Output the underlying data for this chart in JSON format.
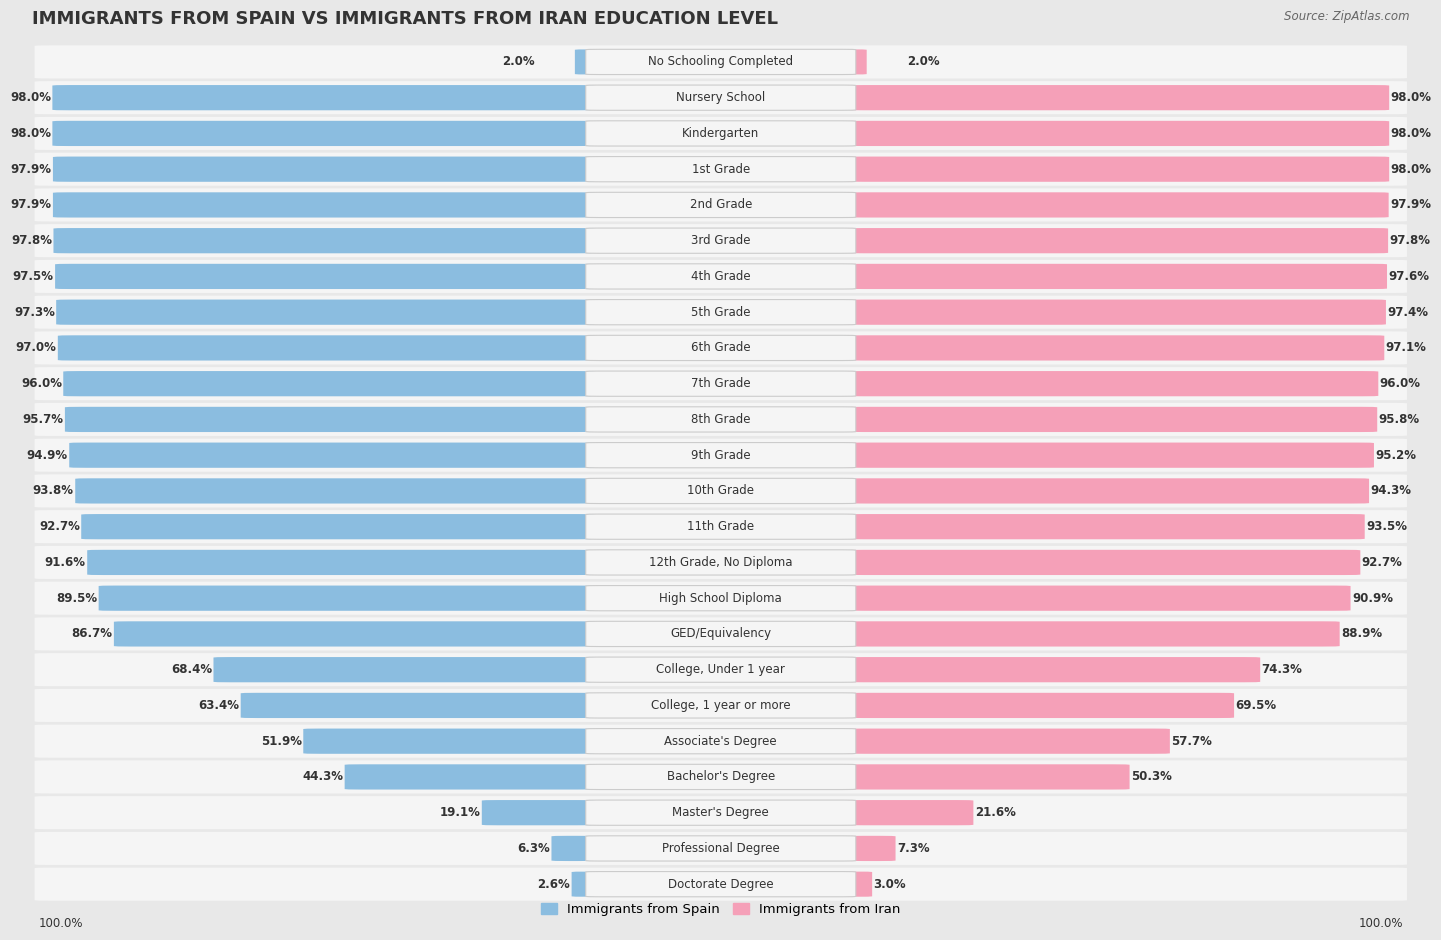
{
  "title": "IMMIGRANTS FROM SPAIN VS IMMIGRANTS FROM IRAN EDUCATION LEVEL",
  "source": "Source: ZipAtlas.com",
  "categories": [
    "No Schooling Completed",
    "Nursery School",
    "Kindergarten",
    "1st Grade",
    "2nd Grade",
    "3rd Grade",
    "4th Grade",
    "5th Grade",
    "6th Grade",
    "7th Grade",
    "8th Grade",
    "9th Grade",
    "10th Grade",
    "11th Grade",
    "12th Grade, No Diploma",
    "High School Diploma",
    "GED/Equivalency",
    "College, Under 1 year",
    "College, 1 year or more",
    "Associate's Degree",
    "Bachelor's Degree",
    "Master's Degree",
    "Professional Degree",
    "Doctorate Degree"
  ],
  "spain_values": [
    2.0,
    98.0,
    98.0,
    97.9,
    97.9,
    97.8,
    97.5,
    97.3,
    97.0,
    96.0,
    95.7,
    94.9,
    93.8,
    92.7,
    91.6,
    89.5,
    86.7,
    68.4,
    63.4,
    51.9,
    44.3,
    19.1,
    6.3,
    2.6
  ],
  "iran_values": [
    2.0,
    98.0,
    98.0,
    98.0,
    97.9,
    97.8,
    97.6,
    97.4,
    97.1,
    96.0,
    95.8,
    95.2,
    94.3,
    93.5,
    92.7,
    90.9,
    88.9,
    74.3,
    69.5,
    57.7,
    50.3,
    21.6,
    7.3,
    3.0
  ],
  "spain_color": "#8bbde0",
  "iran_color": "#f5a0b8",
  "bg_color": "#e8e8e8",
  "bar_bg_color": "#f5f5f5",
  "row_sep_color": "#d0d0d0",
  "title_fontsize": 13,
  "label_fontsize": 8.5,
  "value_fontsize": 8.5,
  "legend_fontsize": 9.5
}
